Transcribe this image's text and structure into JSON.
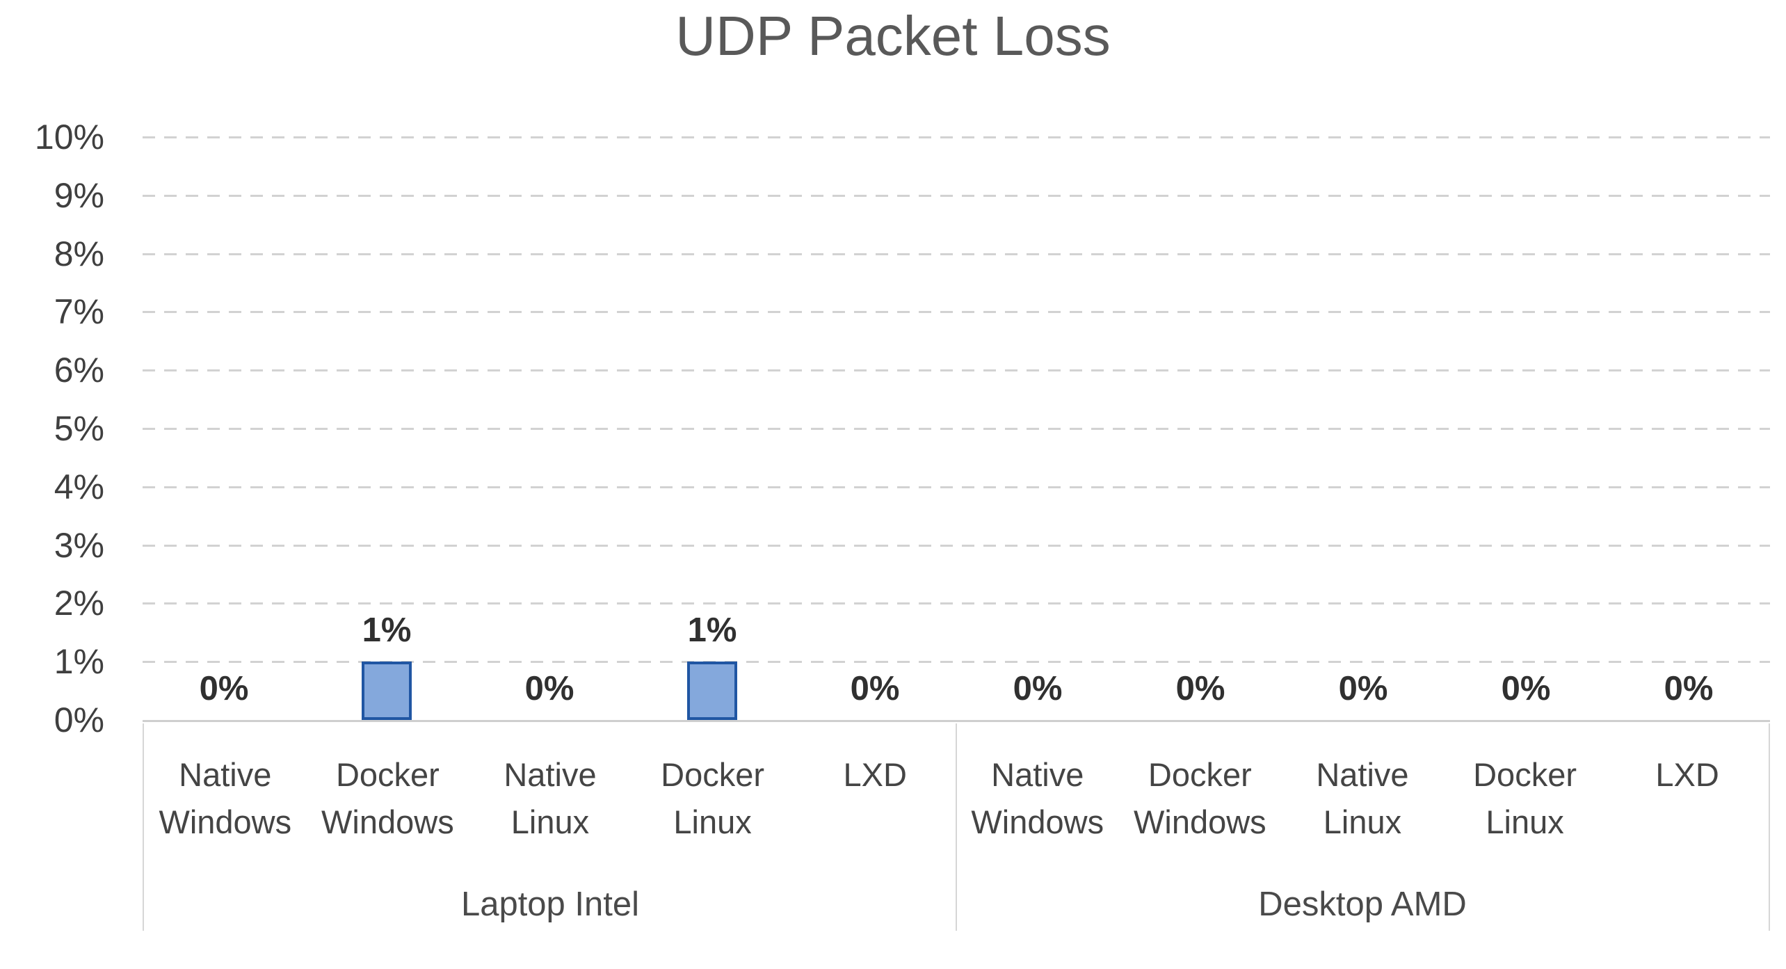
{
  "title": "UDP Packet Loss",
  "colors": {
    "bar_fill": "#84a8dc",
    "bar_border": "#2056a3",
    "gridline": "#d2d2d2",
    "axis_line": "#cfcfcf",
    "box_border": "#d6d6d6",
    "title_text": "#595959",
    "axis_text": "#3f3f3f",
    "data_label_text": "#303030"
  },
  "y_axis": {
    "ticks": [
      "10%",
      "9%",
      "8%",
      "7%",
      "6%",
      "5%",
      "4%",
      "3%",
      "2%",
      "1%",
      "0%"
    ]
  },
  "groups": [
    {
      "label": "Laptop Intel",
      "categories": [
        {
          "line1": "Native",
          "line2": "Windows",
          "value": 0,
          "label": "0%"
        },
        {
          "line1": "Docker",
          "line2": "Windows",
          "value": 1,
          "label": "1%"
        },
        {
          "line1": "Native",
          "line2": "Linux",
          "value": 0,
          "label": "0%"
        },
        {
          "line1": "Docker",
          "line2": "Linux",
          "value": 1,
          "label": "1%"
        },
        {
          "line1": "LXD",
          "line2": "",
          "value": 0,
          "label": "0%"
        }
      ]
    },
    {
      "label": "Desktop AMD",
      "categories": [
        {
          "line1": "Native",
          "line2": "Windows",
          "value": 0,
          "label": "0%"
        },
        {
          "line1": "Docker",
          "line2": "Windows",
          "value": 0,
          "label": "0%"
        },
        {
          "line1": "Native",
          "line2": "Linux",
          "value": 0,
          "label": "0%"
        },
        {
          "line1": "Docker",
          "line2": "Linux",
          "value": 0,
          "label": "0%"
        },
        {
          "line1": "LXD",
          "line2": "",
          "value": 0,
          "label": "0%"
        }
      ]
    }
  ],
  "chart_data": {
    "type": "bar",
    "title": "UDP Packet Loss",
    "group_labels": [
      "Laptop Intel",
      "Desktop AMD"
    ],
    "categories": [
      "Native Windows",
      "Docker Windows",
      "Native Linux",
      "Docker Linux",
      "LXD",
      "Native Windows",
      "Docker Windows",
      "Native Linux",
      "Docker Linux",
      "LXD"
    ],
    "category_group": [
      "Laptop Intel",
      "Laptop Intel",
      "Laptop Intel",
      "Laptop Intel",
      "Laptop Intel",
      "Desktop AMD",
      "Desktop AMD",
      "Desktop AMD",
      "Desktop AMD",
      "Desktop AMD"
    ],
    "values_pct": [
      0,
      1,
      0,
      1,
      0,
      0,
      0,
      0,
      0,
      0
    ],
    "data_labels": [
      "0%",
      "1%",
      "0%",
      "1%",
      "0%",
      "0%",
      "0%",
      "0%",
      "0%",
      "0%"
    ],
    "xlabel": "",
    "ylabel": "",
    "ylim_pct": [
      0,
      10
    ],
    "ytick_step_pct": 1,
    "ytick_labels": [
      "0%",
      "1%",
      "2%",
      "3%",
      "4%",
      "5%",
      "6%",
      "7%",
      "8%",
      "9%",
      "10%"
    ],
    "grid": "horizontal dashed",
    "legend": "none"
  }
}
